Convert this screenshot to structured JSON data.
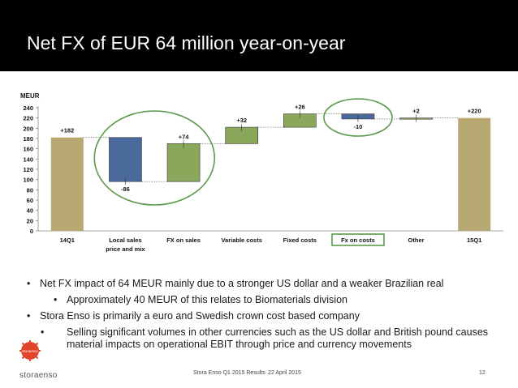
{
  "header": {
    "title": "Net FX of EUR 64 million year-on-year"
  },
  "chart_data": {
    "type": "bar",
    "subtype": "waterfall",
    "ylabel": "MEUR",
    "ylim": [
      0,
      240
    ],
    "yticks": [
      "0",
      "20",
      "40",
      "60",
      "80",
      "100",
      "120",
      "140",
      "160",
      "180",
      "200",
      "220",
      "240"
    ],
    "categories": [
      "14Q1",
      "Local sales price and mix",
      "FX on sales",
      "Variable costs",
      "Fixed costs",
      "Fx on costs",
      "Other",
      "15Q1"
    ],
    "category_labels": [
      [
        "14Q1"
      ],
      [
        "Local sales",
        "price and mix"
      ],
      [
        "FX on sales"
      ],
      [
        "Variable costs"
      ],
      [
        "Fixed costs"
      ],
      [
        "Fx on costs"
      ],
      [
        "Other"
      ],
      [
        "15Q1"
      ]
    ],
    "values": [
      182,
      -86,
      74,
      32,
      26,
      -10,
      2,
      220
    ],
    "value_labels": [
      "+182",
      "-86",
      "+74",
      "+32",
      "+26",
      "-10",
      "+2",
      "+220"
    ],
    "bar_kinds": [
      "total",
      "delta",
      "delta",
      "delta",
      "delta",
      "delta",
      "delta",
      "total"
    ],
    "highlighted": [
      "FX on sales",
      "Fx on costs"
    ],
    "colors": {
      "total": "#b7a971",
      "negative": "#4a6a9c",
      "positive": "#8aa85b",
      "highlight": "#5c9a4a"
    }
  },
  "bullets": [
    {
      "level": 1,
      "text": "Net FX impact of 64 MEUR mainly due to a stronger US dollar and a weaker Brazilian real"
    },
    {
      "level": 2,
      "text": "Approximately 40 MEUR of this relates to Biomaterials division"
    },
    {
      "level": 1,
      "text": "Stora Enso is primarily a euro and Swedish crown cost based company"
    },
    {
      "level": 2,
      "text": "Selling significant volumes in other currencies such as the US dollar and British pound causes material impacts on operational EBIT through price and currency movements"
    }
  ],
  "footer": {
    "brand": "storaenso",
    "logo_text": "storaenso",
    "presentation": "Stora Enso Q1 2015 Results",
    "date": "22 April 2015",
    "page": "12"
  }
}
